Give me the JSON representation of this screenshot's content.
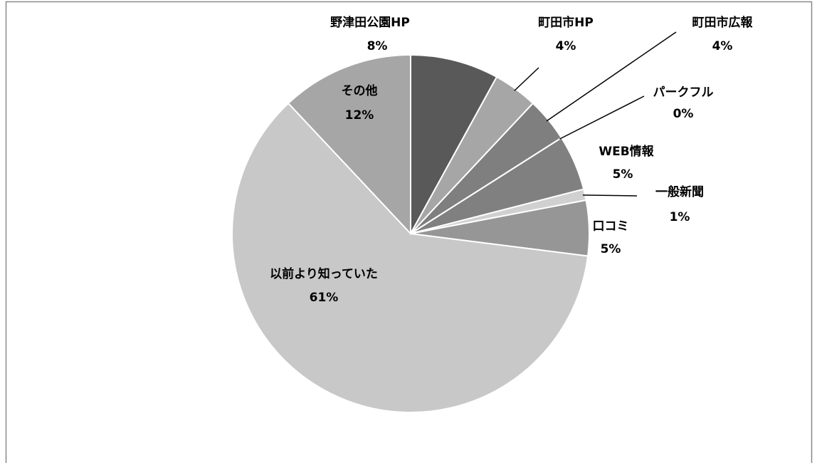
{
  "chart_data": {
    "type": "pie",
    "categories": [
      "野津田公園HP",
      "町田市HP",
      "町田市広報",
      "パークフル",
      "WEB情報",
      "一般新聞",
      "口コミ",
      "以前より知っていた",
      "その他"
    ],
    "values": [
      8,
      4,
      4,
      0,
      5,
      1,
      5,
      61,
      12
    ],
    "value_labels": [
      "8%",
      "4%",
      "4%",
      "0%",
      "5%",
      "1%",
      "5%",
      "61%",
      "12%"
    ],
    "colors": [
      "#595959",
      "#a6a6a6",
      "#7f7f7f",
      "#d9d9d9",
      "#808080",
      "#d0d0d0",
      "#969696",
      "#c8c8c8",
      "#a6a6a6"
    ]
  }
}
